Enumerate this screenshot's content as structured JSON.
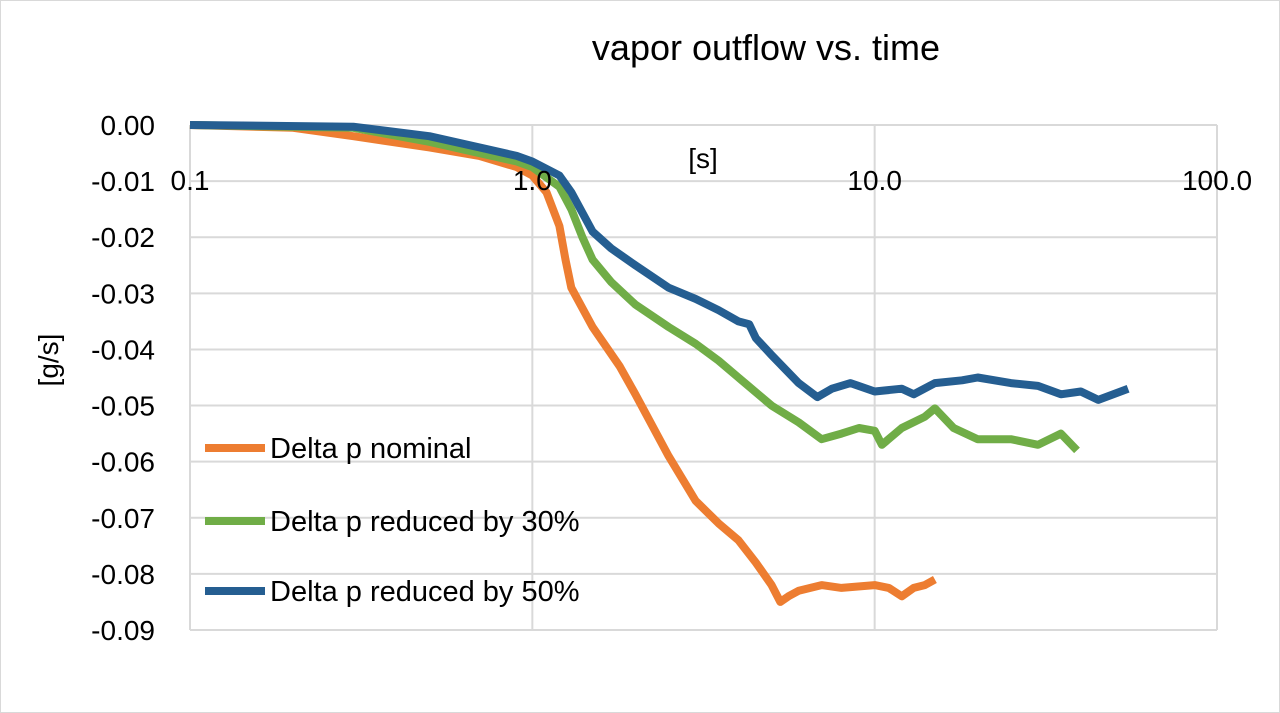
{
  "chart_data": {
    "type": "line",
    "title": "vapor outflow vs. time",
    "xlabel": "[s]",
    "ylabel": "[g/s]",
    "x_scale": "log",
    "xlim": [
      0.1,
      100
    ],
    "ylim": [
      -0.09,
      0.0
    ],
    "x_ticks": [
      "0.1",
      "1.0",
      "10.0",
      "100.0"
    ],
    "x_tick_values": [
      0.1,
      1,
      10,
      100
    ],
    "y_ticks": [
      "0.00",
      "-0.01",
      "-0.02",
      "-0.03",
      "-0.04",
      "-0.05",
      "-0.06",
      "-0.07",
      "-0.08",
      "-0.09"
    ],
    "y_tick_values": [
      0,
      -0.01,
      -0.02,
      -0.03,
      -0.04,
      -0.05,
      -0.06,
      -0.07,
      -0.08,
      -0.09
    ],
    "grid": true,
    "legend_position": "bottom-left inside plot",
    "series": [
      {
        "name": "Delta p nominal",
        "color": "#ED7D31",
        "x": [
          0.1,
          0.2,
          0.3,
          0.5,
          0.7,
          0.9,
          1.0,
          1.1,
          1.2,
          1.25,
          1.3,
          1.5,
          1.8,
          2.0,
          2.5,
          3.0,
          3.5,
          4.0,
          4.5,
          5.0,
          5.3,
          5.6,
          6.0,
          7.0,
          8.0,
          10.0,
          11.0,
          12.0,
          13.0,
          14.0,
          15.0
        ],
        "y": [
          0,
          -0.0005,
          -0.002,
          -0.004,
          -0.0055,
          -0.0075,
          -0.009,
          -0.012,
          -0.018,
          -0.024,
          -0.029,
          -0.036,
          -0.043,
          -0.048,
          -0.059,
          -0.067,
          -0.071,
          -0.074,
          -0.078,
          -0.082,
          -0.085,
          -0.084,
          -0.083,
          -0.082,
          -0.0825,
          -0.082,
          -0.0825,
          -0.084,
          -0.0825,
          -0.082,
          -0.081
        ]
      },
      {
        "name": "Delta p reduced by 30%",
        "color": "#70AD47",
        "x": [
          0.1,
          0.3,
          0.5,
          0.7,
          0.9,
          1.0,
          1.2,
          1.3,
          1.4,
          1.5,
          1.7,
          2.0,
          2.5,
          3.0,
          3.5,
          4.0,
          5.0,
          6.0,
          7.0,
          8.0,
          9.0,
          10.0,
          10.5,
          12.0,
          14.0,
          15.0,
          17.0,
          20.0,
          25.0,
          30.0,
          35.0,
          39.0
        ],
        "y": [
          0,
          -0.0005,
          -0.003,
          -0.005,
          -0.0065,
          -0.0075,
          -0.011,
          -0.015,
          -0.02,
          -0.024,
          -0.028,
          -0.032,
          -0.036,
          -0.039,
          -0.042,
          -0.045,
          -0.05,
          -0.053,
          -0.056,
          -0.055,
          -0.054,
          -0.0545,
          -0.057,
          -0.054,
          -0.052,
          -0.0505,
          -0.054,
          -0.056,
          -0.056,
          -0.057,
          -0.055,
          -0.058
        ]
      },
      {
        "name": "Delta p reduced by 50%",
        "color": "#255E91",
        "x": [
          0.1,
          0.3,
          0.5,
          0.7,
          0.9,
          1.0,
          1.2,
          1.3,
          1.5,
          1.7,
          2.0,
          2.5,
          3.0,
          3.5,
          4.0,
          4.3,
          4.5,
          5.0,
          6.0,
          6.8,
          7.5,
          8.5,
          10.0,
          12.0,
          13.0,
          15.0,
          18.0,
          20.0,
          25.0,
          30.0,
          35.0,
          40.0,
          45.0,
          55.0
        ],
        "y": [
          0,
          -0.0003,
          -0.002,
          -0.004,
          -0.0055,
          -0.0065,
          -0.009,
          -0.012,
          -0.019,
          -0.022,
          -0.025,
          -0.029,
          -0.031,
          -0.033,
          -0.035,
          -0.0355,
          -0.038,
          -0.041,
          -0.046,
          -0.0485,
          -0.047,
          -0.046,
          -0.0475,
          -0.047,
          -0.048,
          -0.046,
          -0.0455,
          -0.045,
          -0.046,
          -0.0465,
          -0.048,
          -0.0475,
          -0.049,
          -0.047
        ]
      }
    ]
  }
}
